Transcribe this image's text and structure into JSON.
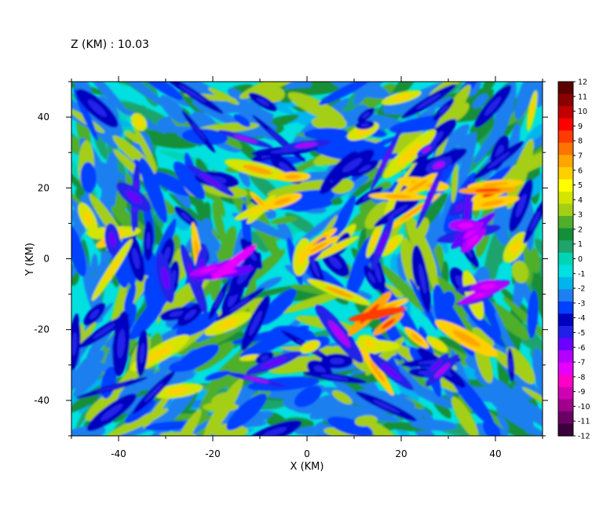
{
  "chart_data": {
    "type": "heatmap",
    "title": "Z (KM) : 10.03",
    "xlabel": "X (KM)",
    "ylabel": "Y (KM)",
    "xlim": [
      -50,
      50
    ],
    "ylim": [
      -50,
      50
    ],
    "x_ticks": [
      -40,
      -20,
      0,
      20,
      40
    ],
    "y_ticks": [
      -40,
      -20,
      0,
      20,
      40
    ],
    "colorbar": {
      "min": -12,
      "max": 12,
      "labels": [
        "12",
        "11",
        "10",
        "9",
        "8",
        "7",
        "6",
        "5",
        "4",
        "3",
        "2",
        "1",
        "0",
        "-1",
        "-2",
        "-3",
        "-4",
        "-5",
        "-6",
        "-7",
        "-8",
        "-9",
        "-10",
        "-11",
        "-12"
      ],
      "colors": [
        "#5a0000",
        "#8b0000",
        "#c00000",
        "#ff0000",
        "#ff3b00",
        "#ff7300",
        "#ffa500",
        "#ffd000",
        "#ffff00",
        "#d4e600",
        "#a5cf16",
        "#4fae2a",
        "#128f38",
        "#1ea46c",
        "#00d4b4",
        "#00e0e0",
        "#00b5ee",
        "#1e7ff0",
        "#0040ff",
        "#0000c0",
        "#2020e8",
        "#6a00ff",
        "#b400ff",
        "#e600ff",
        "#ff00c8",
        "#d000b4",
        "#a0008c",
        "#6a0064",
        "#3c003c"
      ]
    },
    "field_description_values": {
      "background": 0,
      "features": [
        {
          "x": 22,
          "y": 20,
          "v": 6
        },
        {
          "x": 15,
          "y": -16,
          "v": 8
        },
        {
          "x": 38,
          "y": 18,
          "v": 8
        },
        {
          "x": 38,
          "y": -10,
          "v": -8
        },
        {
          "x": 35,
          "y": 8,
          "v": -9
        },
        {
          "x": -8,
          "y": 16,
          "v": 5
        },
        {
          "x": -18,
          "y": -2,
          "v": -9
        },
        {
          "x": 5,
          "y": 6,
          "v": 6
        },
        {
          "x": 28,
          "y": -30,
          "v": -6
        },
        {
          "x": 15,
          "y": -26,
          "v": 4
        },
        {
          "x": -25,
          "y": -15,
          "v": -4
        },
        {
          "x": -40,
          "y": 5,
          "v": 5
        }
      ]
    }
  }
}
